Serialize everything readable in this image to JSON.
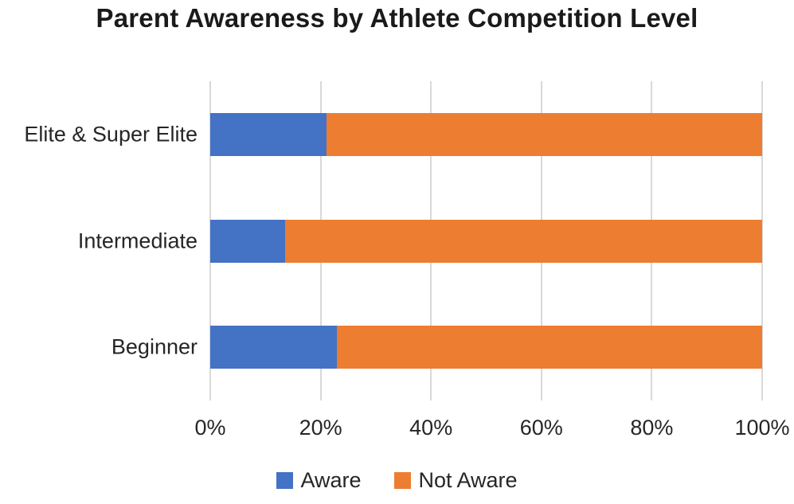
{
  "chart_data": {
    "type": "bar",
    "orientation": "horizontal",
    "stacked": true,
    "title": "Parent Awareness by Athlete Competition Level",
    "categories": [
      "Elite & Super Elite",
      "Intermediate",
      "Beginner"
    ],
    "series": [
      {
        "name": "Aware",
        "color": "#4472C4",
        "values": [
          21,
          13.5,
          23
        ]
      },
      {
        "name": "Not Aware",
        "color": "#ED7D31",
        "values": [
          79,
          86.5,
          77
        ]
      }
    ],
    "xlabel": "",
    "ylabel": "",
    "xlim": [
      0,
      100
    ],
    "x_tick_labels": [
      "0%",
      "20%",
      "40%",
      "60%",
      "80%",
      "100%"
    ],
    "x_tick_values": [
      0,
      20,
      40,
      60,
      80,
      100
    ],
    "grid": "vertical",
    "gridline_color": "#D9D9D9",
    "legend_position": "bottom",
    "legend_entries": [
      "Aware",
      "Not Aware"
    ]
  }
}
